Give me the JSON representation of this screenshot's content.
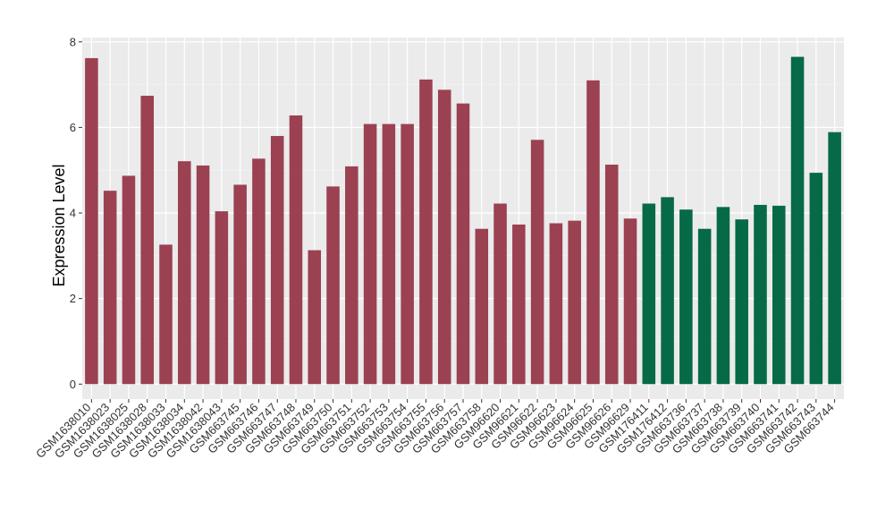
{
  "chart_data": {
    "type": "bar",
    "ylabel": "Expression Level",
    "xlabel": "",
    "ylim": [
      -0.35,
      8.1
    ],
    "yticks": [
      0,
      2,
      4,
      6,
      8
    ],
    "grid": true,
    "legend": "none",
    "colors": {
      "series1": "#9b4152",
      "series2": "#066a47",
      "panel": "#ebebeb",
      "grid_major": "#ffffff",
      "grid_minor": "#f5f5f5",
      "text": "#333333"
    },
    "series": [
      {
        "categories": [
          "GSM1638010",
          "GSM1638023",
          "GSM1638025",
          "GSM1638028",
          "GSM1638033",
          "GSM1638034",
          "GSM1638042",
          "GSM1638043",
          "GSM663745",
          "GSM663746",
          "GSM663747",
          "GSM663748",
          "GSM663749",
          "GSM663750",
          "GSM663751",
          "GSM663752",
          "GSM663753",
          "GSM663754",
          "GSM663755",
          "GSM663756",
          "GSM663757",
          "GSM663758",
          "GSM96620",
          "GSM96621",
          "GSM96622",
          "GSM96623",
          "GSM96624",
          "GSM96625",
          "GSM96626",
          "GSM96629"
        ],
        "values": [
          7.62,
          4.52,
          4.87,
          6.74,
          3.26,
          5.21,
          5.11,
          4.04,
          4.66,
          5.27,
          5.8,
          6.28,
          3.13,
          4.62,
          5.09,
          6.08,
          6.08,
          6.08,
          7.12,
          6.88,
          6.56,
          3.63,
          4.22,
          3.73,
          5.71,
          3.76,
          3.82,
          7.1,
          5.13,
          3.87
        ]
      },
      {
        "categories": [
          "GSM176411",
          "GSM176412",
          "GSM663736",
          "GSM663737",
          "GSM663738",
          "GSM663739",
          "GSM663740",
          "GSM663741",
          "GSM663742",
          "GSM663743",
          "GSM663744"
        ],
        "values": [
          4.22,
          4.37,
          4.08,
          3.63,
          4.14,
          3.85,
          4.19,
          4.17,
          7.65,
          4.94,
          5.89
        ]
      }
    ]
  }
}
